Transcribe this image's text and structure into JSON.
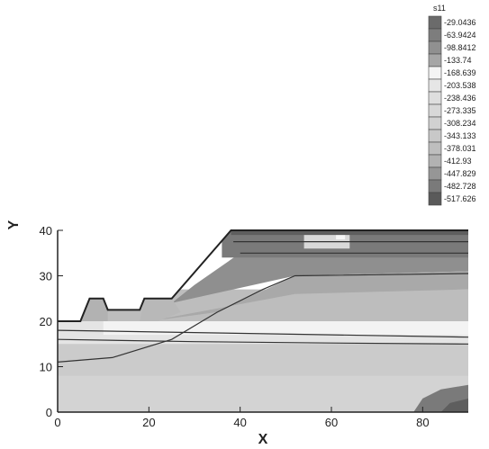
{
  "chart_data": {
    "type": "heatmap",
    "variable": "s11",
    "xlabel": "X",
    "ylabel": "Y",
    "xlim": [
      0,
      90
    ],
    "ylim": [
      0,
      40
    ],
    "x_ticks": [
      0,
      20,
      40,
      60,
      80
    ],
    "y_ticks": [
      0,
      10,
      20,
      30,
      40
    ],
    "grid": false,
    "legend_position": "top-right",
    "legend": {
      "title": "s11",
      "levels": [
        "-29.0436",
        "-63.9424",
        "-98.8412",
        "-133.74",
        "-168.639",
        "-203.538",
        "-238.436",
        "-273.335",
        "-308.234",
        "-343.133",
        "-378.031",
        "-412.93",
        "-447.829",
        "-482.728",
        "-517.626"
      ],
      "colors": [
        "#6b6b6b",
        "#7d7d7d",
        "#909090",
        "#a6a6a6",
        "#f4f4f4",
        "#e6e6e6",
        "#dedede",
        "#d8d8d8",
        "#d1d1d1",
        "#c8c8c8",
        "#bebebe",
        "#b2b2b2",
        "#969696",
        "#7a7a7a",
        "#5a5a5a"
      ]
    },
    "slope_outline": [
      [
        0,
        20
      ],
      [
        5,
        20
      ],
      [
        7,
        25
      ],
      [
        10,
        25
      ],
      [
        11,
        22.5
      ],
      [
        18,
        22.5
      ],
      [
        19,
        25
      ],
      [
        25,
        25
      ],
      [
        38,
        40
      ],
      [
        90,
        40
      ]
    ],
    "layer_lines": [
      {
        "points": [
          [
            0,
            18
          ],
          [
            30,
            17.5
          ],
          [
            60,
            17
          ],
          [
            90,
            16.5
          ]
        ]
      },
      {
        "points": [
          [
            0,
            16
          ],
          [
            30,
            15.5
          ],
          [
            60,
            15.2
          ],
          [
            90,
            15
          ]
        ]
      },
      {
        "points": [
          [
            0,
            11
          ],
          [
            12,
            12
          ],
          [
            25,
            16
          ],
          [
            35,
            22
          ],
          [
            45,
            27
          ],
          [
            52,
            30
          ],
          [
            90,
            30.5
          ]
        ]
      },
      {
        "points": [
          [
            40,
            35
          ],
          [
            90,
            35
          ]
        ]
      },
      {
        "points": [
          [
            38.5,
            37.5
          ],
          [
            90,
            37.5
          ]
        ]
      }
    ]
  }
}
